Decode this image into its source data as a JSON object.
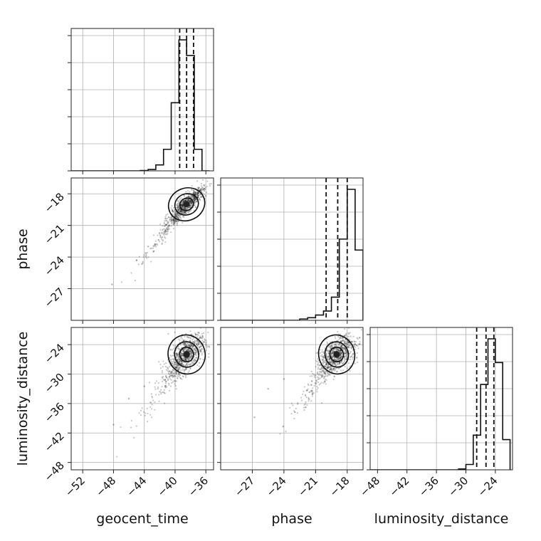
{
  "chart_data": {
    "type": "corner",
    "parameters": [
      {
        "name": "geocent_time",
        "label": "geocent_time",
        "range": [
          -53.5,
          -35.0
        ],
        "ticks": [
          -52,
          -48,
          -44,
          -40,
          -36
        ]
      },
      {
        "name": "phase",
        "label": "phase",
        "range": [
          -30.0,
          -16.5
        ],
        "ticks": [
          -27,
          -24,
          -21,
          -18
        ]
      },
      {
        "name": "luminosity_distance",
        "label": "luminosity_distance",
        "range": [
          -49.5,
          -20.5
        ],
        "ticks": [
          -48,
          -42,
          -36,
          -30,
          -24
        ]
      }
    ],
    "y_labels": [
      "phase",
      "luminosity_distance"
    ],
    "histograms": [
      {
        "parameter": "geocent_time",
        "bin_edges": [
          -53.5,
          -52.5,
          -51.5,
          -50.5,
          -49.5,
          -48.5,
          -47.5,
          -46.5,
          -45.5,
          -44.5,
          -43.5,
          -42.5,
          -41.5,
          -40.5,
          -39.5,
          -38.5,
          -37.5,
          -36.5,
          -35.5
        ],
        "counts": [
          0,
          0,
          0,
          0,
          0,
          0,
          0,
          0,
          0,
          1,
          4,
          17,
          62,
          196,
          377,
          332,
          62,
          0
        ],
        "quantiles": [
          -39.4,
          -38.5,
          -37.6
        ]
      },
      {
        "parameter": "phase",
        "bin_edges": [
          -30.0,
          -29.25,
          -28.5,
          -27.75,
          -27.0,
          -26.25,
          -25.5,
          -24.75,
          -24.0,
          -23.25,
          -22.5,
          -21.75,
          -21.0,
          -20.25,
          -19.5,
          -18.75,
          -18.0,
          -17.25,
          -16.5
        ],
        "counts": [
          0,
          0,
          0,
          0,
          0,
          0,
          0,
          0,
          0,
          0,
          4,
          8,
          16,
          28,
          70,
          245,
          395,
          212
        ],
        "quantiles": [
          -20.0,
          -18.9,
          -18.0
        ]
      },
      {
        "parameter": "luminosity_distance",
        "bin_edges": [
          -49.5,
          -48.0,
          -46.5,
          -45.0,
          -43.5,
          -42.0,
          -40.5,
          -39.0,
          -37.5,
          -36.0,
          -34.5,
          -33.0,
          -31.5,
          -30.0,
          -28.5,
          -27.0,
          -25.5,
          -24.0,
          -22.5,
          -21.0
        ],
        "counts": [
          0,
          0,
          0,
          0,
          0,
          0,
          0,
          0,
          0,
          0,
          0,
          0,
          3,
          18,
          117,
          288,
          442,
          362,
          102
        ],
        "quantiles": [
          -27.8,
          -25.9,
          -24.3
        ]
      }
    ],
    "scatter_2d": [
      {
        "x": "geocent_time",
        "y": "phase",
        "center": [
          -38.5,
          -19.0
        ],
        "spread": [
          1.2,
          0.85
        ],
        "correlation": 0.85,
        "outliers": [
          [
            -48.2,
            -26.6
          ],
          [
            -45.0,
            -24.3
          ],
          [
            -43.5,
            -23.0
          ]
        ]
      },
      {
        "x": "geocent_time",
        "y": "luminosity_distance",
        "center": [
          -38.5,
          -26.0
        ],
        "spread": [
          1.2,
          2.0
        ],
        "correlation": 0.5,
        "outliers": [
          [
            -48.0,
            -40.3
          ],
          [
            -46.0,
            -35.0
          ],
          [
            -44.0,
            -32.5
          ]
        ]
      },
      {
        "x": "phase",
        "y": "luminosity_distance",
        "center": [
          -19.0,
          -26.0
        ],
        "spread": [
          0.85,
          2.0
        ],
        "correlation": 0.5,
        "outliers": [
          [
            -26.8,
            -38.8
          ],
          [
            -25.5,
            -33.0
          ],
          [
            -24.0,
            -31.0
          ]
        ]
      }
    ],
    "contour_levels": "1-2 sigma",
    "grid": true
  }
}
